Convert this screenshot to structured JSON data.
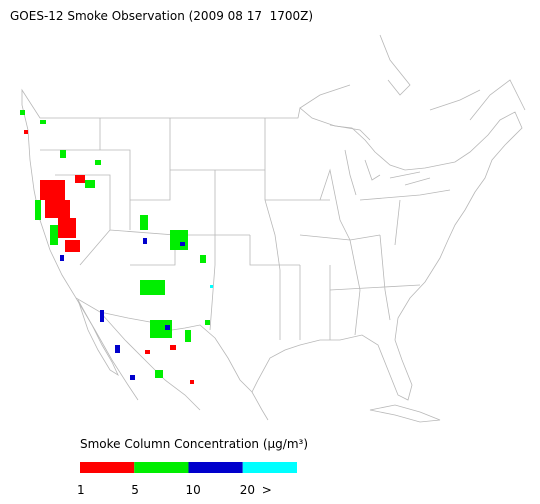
{
  "header": {
    "title": "GOES-12 Smoke Observation (2009 08 17  1700Z)"
  },
  "legend": {
    "title": "Smoke Column Concentration (μg/m³)",
    "colors": [
      "#ff0000",
      "#00ee00",
      "#0000cc",
      "#00ffff"
    ],
    "labels": [
      "1",
      "5",
      "10",
      "20",
      ">"
    ]
  }
}
